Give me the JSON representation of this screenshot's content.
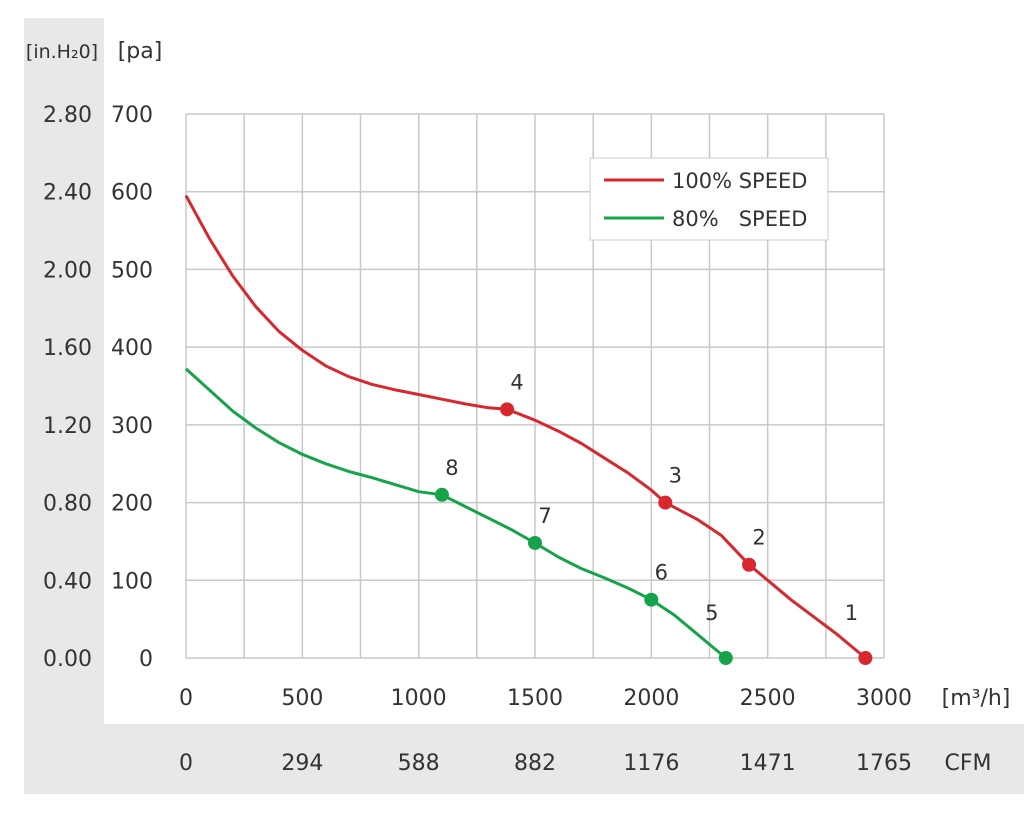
{
  "chart_data": {
    "type": "line",
    "xlabel": "",
    "ylabel": "",
    "xunit": "[m³/h]",
    "x2unit": "CFM",
    "yunit_in": "[in.H₂0]",
    "yunit_pa": "[pa]",
    "xlim": [
      0,
      3000
    ],
    "ylim": [
      0,
      700
    ],
    "grid": true,
    "legend_position": "top-right",
    "x_ticks": [
      "0",
      "500",
      "1000",
      "1500",
      "2000",
      "2500",
      "3000"
    ],
    "x_tick_values": [
      0,
      250,
      500,
      750,
      1000,
      1250,
      1500,
      1750,
      2000,
      2250,
      2500,
      2750,
      3000
    ],
    "x2_ticks": [
      "0",
      "294",
      "588",
      "882",
      "1176",
      "1471",
      "1765"
    ],
    "y_ticks_pa": [
      "0",
      "100",
      "200",
      "300",
      "400",
      "500",
      "600",
      "700"
    ],
    "y_ticks_in": [
      "0.00",
      "0.40",
      "0.80",
      "1.20",
      "1.60",
      "2.00",
      "2.40",
      "2.80"
    ],
    "series": [
      {
        "name": "100% SPEED",
        "color": "#d7282f",
        "x": [
          0,
          100,
          200,
          300,
          400,
          500,
          600,
          700,
          800,
          900,
          1000,
          1100,
          1200,
          1300,
          1380,
          1500,
          1600,
          1700,
          1800,
          1900,
          2000,
          2060,
          2200,
          2300,
          2420,
          2600,
          2800,
          2920
        ],
        "values": [
          595,
          540,
          492,
          452,
          420,
          396,
          376,
          362,
          352,
          345,
          339,
          333,
          327,
          322,
          320,
          306,
          292,
          276,
          257,
          238,
          216,
          200,
          178,
          158,
          120,
          75,
          30,
          0
        ],
        "points": [
          {
            "label": "1",
            "x": 2920,
            "y": 0
          },
          {
            "label": "2",
            "x": 2420,
            "y": 120
          },
          {
            "label": "3",
            "x": 2060,
            "y": 200
          },
          {
            "label": "4",
            "x": 1380,
            "y": 320
          }
        ]
      },
      {
        "name": "80%   SPEED",
        "color": "#16a34a",
        "x": [
          0,
          100,
          200,
          300,
          400,
          500,
          600,
          700,
          800,
          900,
          1000,
          1100,
          1200,
          1300,
          1400,
          1500,
          1600,
          1700,
          1800,
          1900,
          2000,
          2100,
          2200,
          2320
        ],
        "values": [
          372,
          345,
          318,
          296,
          277,
          262,
          250,
          240,
          232,
          223,
          214,
          210,
          195,
          180,
          165,
          148,
          130,
          115,
          103,
          90,
          75,
          55,
          30,
          0
        ],
        "points": [
          {
            "label": "5",
            "x": 2320,
            "y": 0
          },
          {
            "label": "6",
            "x": 2000,
            "y": 75
          },
          {
            "label": "7",
            "x": 1500,
            "y": 148
          },
          {
            "label": "8",
            "x": 1100,
            "y": 210
          }
        ]
      }
    ]
  }
}
